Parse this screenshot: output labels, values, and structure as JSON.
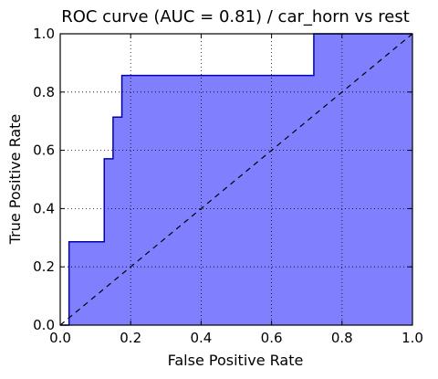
{
  "chart_data": {
    "type": "area",
    "title": "ROC curve (AUC = 0.81) / car_horn vs rest",
    "xlabel": "False Positive Rate",
    "ylabel": "True Positive Rate",
    "xlim": [
      0.0,
      1.0
    ],
    "ylim": [
      0.0,
      1.0
    ],
    "xticks": [
      "0.0",
      "0.2",
      "0.4",
      "0.6",
      "0.8",
      "1.0"
    ],
    "yticks": [
      "0.0",
      "0.2",
      "0.4",
      "0.6",
      "0.8",
      "1.0"
    ],
    "grid": true,
    "grid_style": "dotted",
    "series": [
      {
        "type": "step-area",
        "color": "#0000b4",
        "fill_color": "#8080ff",
        "x": [
          0.0,
          0.025,
          0.025,
          0.125,
          0.125,
          0.15,
          0.15,
          0.175,
          0.175,
          0.72,
          0.72,
          1.0
        ],
        "y": [
          0.0,
          0.0,
          0.286,
          0.286,
          0.571,
          0.571,
          0.714,
          0.714,
          0.857,
          0.857,
          1.0,
          1.0
        ]
      },
      {
        "type": "reference-line",
        "style": "dashed",
        "color": "#000000",
        "x": [
          0.0,
          1.0
        ],
        "y": [
          0.0,
          1.0
        ]
      }
    ]
  }
}
